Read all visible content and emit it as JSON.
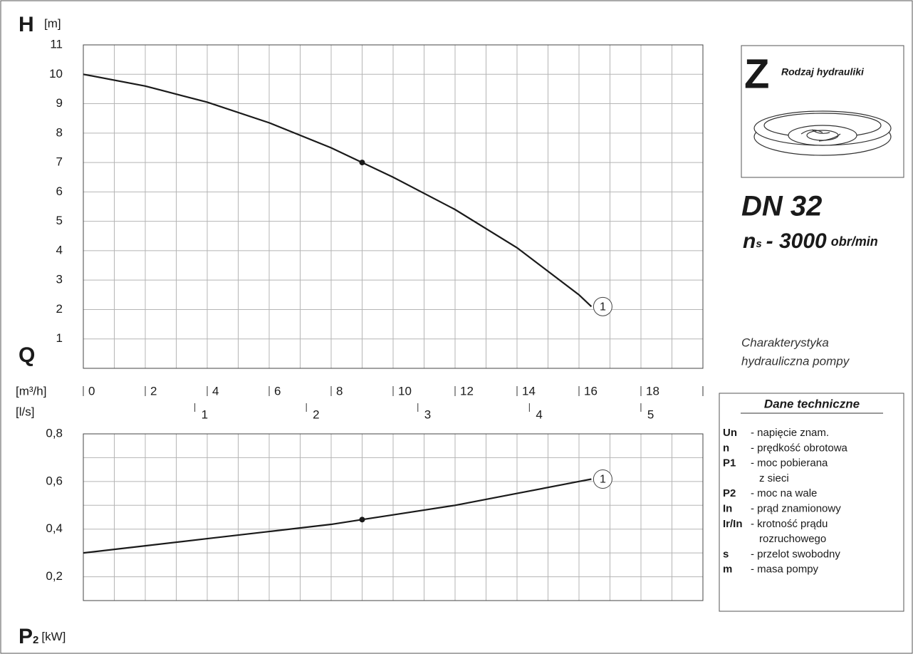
{
  "chart_data": [
    {
      "type": "line",
      "y_symbol": "H",
      "y_unit": "[m]",
      "xlim": [
        0,
        20
      ],
      "ylim": [
        0,
        11
      ],
      "yticks": [
        1,
        2,
        3,
        4,
        5,
        6,
        7,
        8,
        9,
        10,
        11
      ],
      "xgrid": [
        1,
        2,
        3,
        4,
        5,
        6,
        7,
        8,
        9,
        10,
        11,
        12,
        13,
        14,
        15,
        16,
        17,
        18,
        19
      ],
      "ygrid": [
        1,
        2,
        3,
        4,
        5,
        6,
        7,
        8,
        9,
        10
      ],
      "series": [
        {
          "name": "1",
          "color": "#1a1a1a",
          "x": [
            0,
            2,
            4,
            6,
            8,
            9,
            10,
            12,
            14,
            16,
            16.4
          ],
          "values": [
            10,
            9.6,
            9.05,
            8.35,
            7.5,
            7.0,
            6.5,
            5.4,
            4.1,
            2.5,
            2.1
          ]
        }
      ],
      "point": {
        "x": 9,
        "y": 7
      }
    },
    {
      "type": "line",
      "y_symbol": "P",
      "y_subscript": "2",
      "y_unit": "[kW]",
      "xlim": [
        0,
        20
      ],
      "ylim": [
        0.1,
        0.8
      ],
      "yticks": [
        {
          "value": 0.2,
          "label": "0,2"
        },
        {
          "value": 0.4,
          "label": "0,4"
        },
        {
          "value": 0.6,
          "label": "0,6"
        },
        {
          "value": 0.8,
          "label": "0,8"
        }
      ],
      "xgrid": [
        1,
        2,
        3,
        4,
        5,
        6,
        7,
        8,
        9,
        10,
        11,
        12,
        13,
        14,
        15,
        16,
        17,
        18,
        19
      ],
      "ygrid": [
        0.2,
        0.3,
        0.4,
        0.5,
        0.6,
        0.7
      ],
      "series": [
        {
          "name": "1",
          "color": "#1a1a1a",
          "x": [
            0,
            2,
            4,
            6,
            8,
            9,
            10,
            12,
            14,
            16,
            16.4
          ],
          "values": [
            0.3,
            0.33,
            0.36,
            0.39,
            0.42,
            0.44,
            0.46,
            0.5,
            0.55,
            0.6,
            0.61
          ]
        }
      ],
      "point": {
        "x": 9,
        "y": 0.44
      }
    }
  ],
  "flow_axis": {
    "symbol": "Q",
    "unit": "[m³/h]",
    "xlim": [
      0,
      20
    ],
    "xticks": [
      0,
      2,
      4,
      6,
      8,
      10,
      12,
      14,
      16,
      18
    ],
    "unit2": "[l/s]",
    "x2lim": [
      0,
      5.556
    ],
    "x2ticks": [
      1,
      2,
      3,
      4,
      5
    ]
  },
  "pump": {
    "hydraulics_letter": "Z",
    "hydraulics_label": "Rodzaj hydrauliki",
    "size": "DN 32",
    "speed": {
      "symbol": "n",
      "subscript": "s",
      "value": "- 3000",
      "unit": "obr/min"
    },
    "caption": [
      "Charakterystyka",
      "hydrauliczna pompy"
    ]
  },
  "table": {
    "title": "Dane techniczne",
    "rows": [
      {
        "key": "Un",
        "lines": [
          "- napięcie znam."
        ]
      },
      {
        "key": "n",
        "lines": [
          "- prędkość obrotowa"
        ]
      },
      {
        "key": "P1",
        "lines": [
          "- moc pobierana",
          "z sieci"
        ]
      },
      {
        "key": "P2",
        "lines": [
          "- moc na wale"
        ]
      },
      {
        "key": "In",
        "lines": [
          "- prąd znamionowy"
        ]
      },
      {
        "key": "Ir/In",
        "lines": [
          "- krotność prądu",
          "rozruchowego"
        ]
      },
      {
        "key": "s",
        "lines": [
          "- przelot swobodny"
        ]
      },
      {
        "key": "m",
        "lines": [
          "- masa pompy"
        ]
      }
    ]
  }
}
